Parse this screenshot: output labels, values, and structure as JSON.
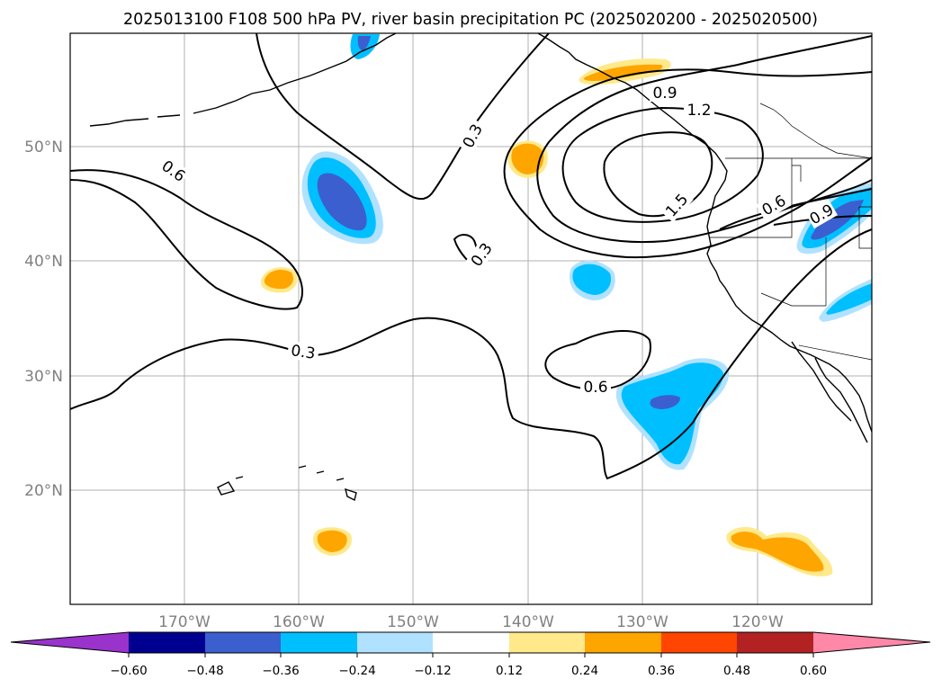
{
  "title": "2025013100 F108 500 hPa PV, river basin precipitation PC (2025020200 - 2025020500)",
  "map": {
    "lat_labels": [
      "50°N",
      "40°N",
      "30°N",
      "20°N"
    ],
    "lon_labels": [
      "170°W",
      "160°W",
      "150°W",
      "140°W",
      "130°W",
      "120°W"
    ],
    "gridlines": true,
    "pv_contour_labels": [
      "0.6",
      "0.3",
      "0.3",
      "0.3",
      "0.9",
      "1.2",
      "1.5",
      "0.6",
      "0.6",
      "0.9"
    ],
    "contour_color": "#000000"
  },
  "colorbar": {
    "ticks": [
      "−0.60",
      "−0.48",
      "−0.36",
      "−0.24",
      "−0.12",
      "0.12",
      "0.24",
      "0.36",
      "0.48",
      "0.60"
    ],
    "colors": [
      "#9933cc",
      "#000090",
      "#3b5fcf",
      "#00bfff",
      "#b0e2ff",
      "#ffffff",
      "#ffe98a",
      "#ffa500",
      "#ff4500",
      "#b22222",
      "#ff88a8"
    ],
    "extend": "both"
  }
}
